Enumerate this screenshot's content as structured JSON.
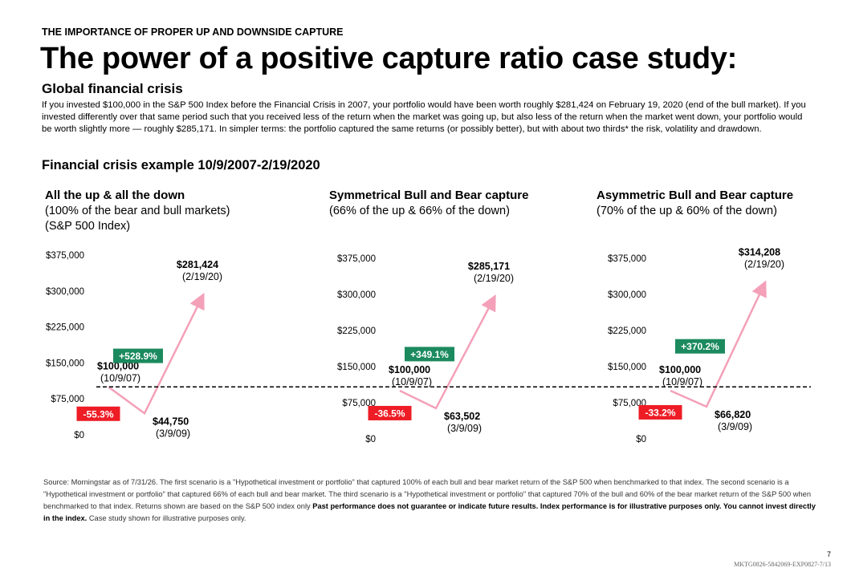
{
  "header": {
    "eyebrow": "THE IMPORTANCE OF PROPER UP AND DOWNSIDE CAPTURE",
    "title": "The power of a positive capture ratio case study:",
    "subtitle": "Global financial crisis",
    "body": "If you invested $100,000 in the S&P 500 Index before the Financial Crisis in 2007, your portfolio would have been worth roughly $281,424 on February 19, 2020 (end of the bull market). If you invested differently over that same period such that you received less of the return when the market was going up, but also less of the return when the market went down, your portfolio would be worth slightly more — roughly $285,171.  In simpler terms: the portfolio captured the same returns (or possibly better), but with about two thirds* the risk, volatility and drawdown.",
    "section": "Financial crisis example 10/9/2007-2/19/2020"
  },
  "chart_data": [
    {
      "type": "line",
      "title": "All the up & all the down",
      "subtitle": [
        "(100% of the bear and bull markets)",
        "(S&P 500 Index)"
      ],
      "categories": [
        "(10/9/07)",
        "(3/9/09)",
        "(2/19/20)"
      ],
      "values": [
        100000,
        44750,
        281424
      ],
      "value_labels": [
        "$100,000",
        "$44,750",
        "$281,424"
      ],
      "changes": [
        {
          "value": -55.3,
          "label": "-55.3%"
        },
        {
          "value": 528.9,
          "label": "+528.9%"
        }
      ],
      "reference_line": 100000,
      "color": "#f4a0b8",
      "decline_color": "#ee1c25",
      "rise_color": "#1b8a5e",
      "ylim": [
        0,
        375000
      ],
      "yticks": [
        {
          "value": 0,
          "label": "$0"
        },
        {
          "value": 75000,
          "label": "$75,000"
        },
        {
          "value": 150000,
          "label": "$150,000"
        },
        {
          "value": 225000,
          "label": "$225,000"
        },
        {
          "value": 300000,
          "label": "$300,000"
        },
        {
          "value": 375000,
          "label": "$375,000"
        }
      ]
    },
    {
      "type": "line",
      "title": "Symmetrical Bull and Bear capture",
      "subtitle": [
        "(66% of the up & 66% of the down)"
      ],
      "categories": [
        "(10/9/07)",
        "(3/9/09)",
        "(2/19/20)"
      ],
      "values": [
        100000,
        63502,
        285171
      ],
      "value_labels": [
        "$100,000",
        "$63,502",
        "$285,171"
      ],
      "changes": [
        {
          "value": -36.5,
          "label": "-36.5%"
        },
        {
          "value": 349.1,
          "label": "+349.1%"
        }
      ],
      "color": "#f4a0b8",
      "decline_color": "#ee1c25",
      "rise_color": "#1b8a5e",
      "ylim": [
        0,
        375000
      ],
      "yticks": [
        {
          "value": 0,
          "label": "$0"
        },
        {
          "value": 75000,
          "label": "$75,000"
        },
        {
          "value": 150000,
          "label": "$150,000"
        },
        {
          "value": 225000,
          "label": "$225,000"
        },
        {
          "value": 300000,
          "label": "$300,000"
        },
        {
          "value": 375000,
          "label": "$375,000"
        }
      ]
    },
    {
      "type": "line",
      "title": "Asymmetric Bull and Bear capture",
      "subtitle": [
        "(70% of the up & 60% of the down)"
      ],
      "categories": [
        "(10/9/07)",
        "(3/9/09)",
        "(2/19/20)"
      ],
      "values": [
        100000,
        66820,
        314208
      ],
      "value_labels": [
        "$100,000",
        "$66,820",
        "$314,208"
      ],
      "changes": [
        {
          "value": -33.2,
          "label": "-33.2%"
        },
        {
          "value": 370.2,
          "label": "+370.2%"
        }
      ],
      "color": "#f4a0b8",
      "decline_color": "#ee1c25",
      "rise_color": "#1b8a5e",
      "ylim": [
        0,
        375000
      ],
      "yticks": [
        {
          "value": 0,
          "label": "$0"
        },
        {
          "value": 75000,
          "label": "$75,000"
        },
        {
          "value": 150000,
          "label": "$150,000"
        },
        {
          "value": 225000,
          "label": "$225,000"
        },
        {
          "value": 300000,
          "label": "$300,000"
        },
        {
          "value": 375000,
          "label": "$375,000"
        }
      ]
    }
  ],
  "footer": {
    "note": "Source: Morningstar as of 7/31/26. The first scenario is a \"Hypothetical investment or portfolio\" that captured 100% of each bull and bear market return of the S&P 500 when benchmarked to that index. The second scenario is a \"Hypothetical investment or portfolio\" that captured 66% of each bull and bear market. The third scenario is a \"Hypothetical investment or portfolio\" that captured 70% of the bull and 60% of the bear market return of the S&P 500 when benchmarked to that index. Returns shown are based on the S&P 500 index only",
    "note_bold": "Past performance does not guarantee or indicate future results. Index performance is for illustrative purposes only. You cannot invest directly in the index.",
    "note_end": "Case study shown for illustrative purposes only.",
    "page": "7",
    "code": "MKTG0826-5842069-EXP0827-7/13"
  }
}
